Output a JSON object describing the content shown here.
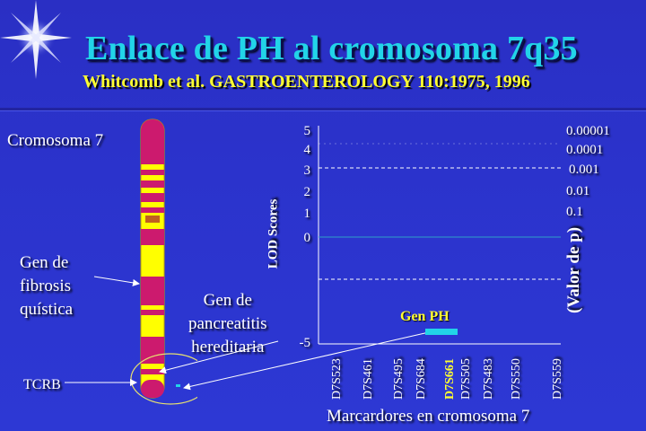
{
  "slide": {
    "title": "Enlace de PH al cromosoma 7q35",
    "subtitle": "Whitcomb et al. GASTROENTEROLOGY 110:1975, 1996"
  },
  "labels": {
    "chromosome": "Cromosoma 7",
    "cf_gene_line1": "Gen de",
    "cf_gene_line2": "fibrosis",
    "cf_gene_line3": "quística",
    "hp_gene_line1": "Gen de",
    "hp_gene_line2": "pancreatitis",
    "hp_gene_line3": "hereditaria",
    "tcrb": "TCRB"
  },
  "chart": {
    "ylabel_left": "LOD Scores",
    "ylabel_right": "(Valor de p)",
    "xlabel": "Marcardores  en cromosoma 7",
    "gene_ph_label": "Gen PH",
    "left_ticks": [
      "5",
      "4",
      "3",
      "2",
      "1",
      "0",
      "-5"
    ],
    "right_ticks": [
      "0.00001",
      "0.0001",
      "0.001",
      "0.01",
      "0.1"
    ],
    "markers": [
      "D7S523",
      "D7S461",
      "D7S495",
      "D7S684",
      "D7S661",
      "D7S505",
      "D7S483",
      "D7S550",
      "D7S559"
    ],
    "highlight_marker": "D7S661",
    "colors": {
      "zero_line": "#2fa0c8",
      "gene_bar": "#22d4e8",
      "highlight": "#ffff33"
    }
  }
}
